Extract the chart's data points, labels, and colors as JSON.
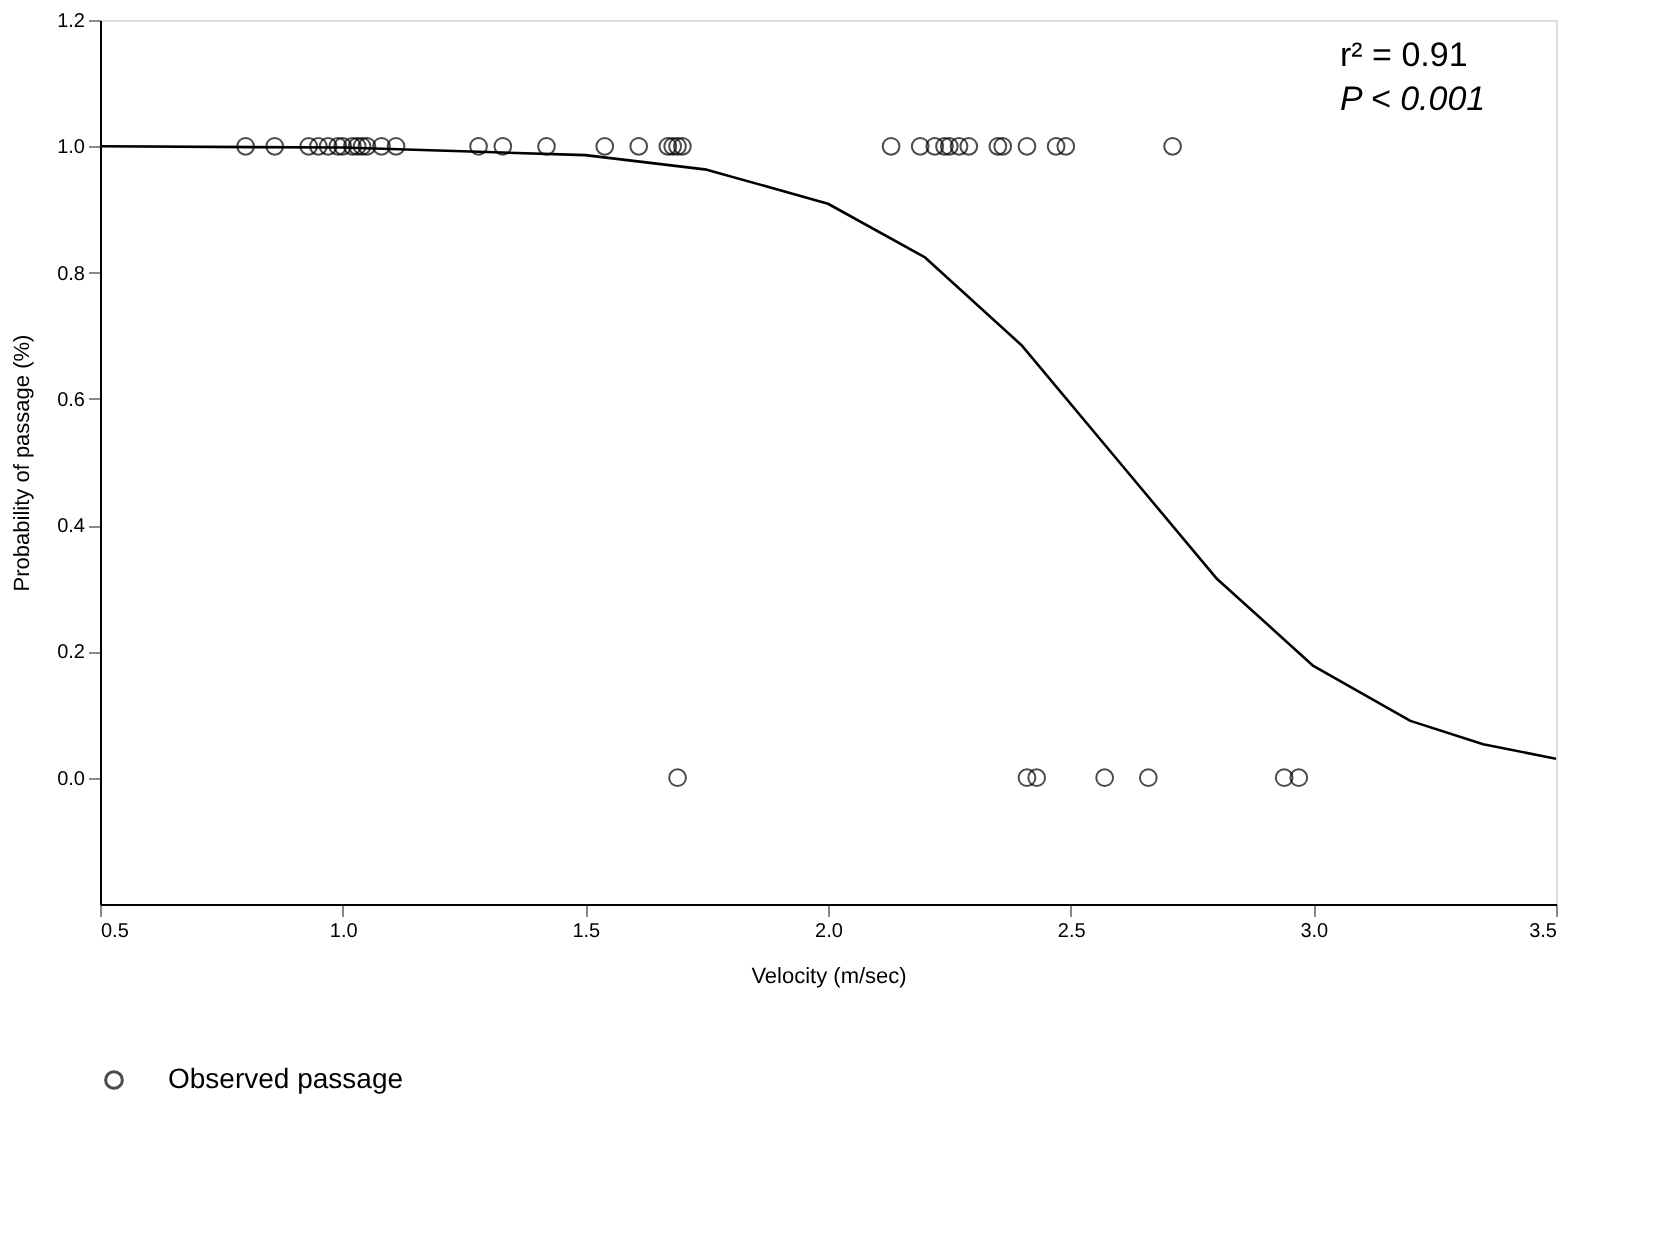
{
  "chart_data": {
    "type": "scatter",
    "xlabel": "Velocity (m/sec)",
    "ylabel": "Probability of passage (%)",
    "xlim": [
      0.5,
      3.5
    ],
    "xticks": [
      {
        "value": 0.5,
        "label": "0.5"
      },
      {
        "value": 1,
        "label": "1.0"
      },
      {
        "value": 1.5,
        "label": "1.5"
      },
      {
        "value": 2,
        "label": "2.0"
      },
      {
        "value": 2.5,
        "label": "2.5"
      },
      {
        "value": 3,
        "label": "3.0"
      },
      {
        "value": 3.5,
        "label": "3.5"
      }
    ],
    "ylim": [
      -0.2,
      1.2
    ],
    "yticks": [
      {
        "value": 0,
        "label": "0.0"
      },
      {
        "value": 0.2,
        "label": "0.2"
      },
      {
        "value": 0.4,
        "label": "0.4"
      },
      {
        "value": 0.6,
        "label": "0.6"
      },
      {
        "value": 0.8,
        "label": "0.8"
      },
      {
        "value": 1,
        "label": "1.0"
      },
      {
        "value": 1.2,
        "label": "1.2"
      }
    ],
    "grid": false,
    "legend": "bottom left",
    "series": [
      {
        "name": "Observed passage",
        "marker": "circle",
        "color": "#000000",
        "x": [
          0.8,
          0.86,
          0.93,
          0.95,
          0.97,
          0.99,
          1.0,
          1.02,
          1.03,
          1.04,
          1.05,
          1.08,
          1.11,
          1.28,
          1.33,
          1.42,
          1.54,
          1.61,
          1.67,
          1.68,
          1.69,
          1.7,
          2.13,
          2.19,
          2.22,
          2.24,
          2.25,
          2.27,
          2.29,
          2.35,
          2.36,
          2.41,
          2.47,
          2.49,
          2.71,
          1.69,
          2.41,
          2.43,
          2.57,
          2.66,
          2.94,
          2.97
        ],
        "values": [
          1,
          1,
          1,
          1,
          1,
          1,
          1,
          1,
          1,
          1,
          1,
          1,
          1,
          1,
          1,
          1,
          1,
          1,
          1,
          1,
          1,
          1,
          1,
          1,
          1,
          1,
          1,
          1,
          1,
          1,
          1,
          1,
          1,
          1,
          1,
          0,
          0,
          0,
          0,
          0,
          0,
          0
        ]
      },
      {
        "type": "line",
        "marker": "none",
        "line_style": "solid",
        "color": "#000000",
        "x": [
          0.5,
          1.0,
          1.5,
          1.75,
          2.0,
          2.2,
          2.4,
          2.6,
          2.8,
          3.0,
          3.2,
          3.35,
          3.5
        ],
        "values": [
          1.0,
          0.998,
          0.986,
          0.963,
          0.909,
          0.824,
          0.684,
          0.5,
          0.316,
          0.177,
          0.09,
          0.053,
          0.03
        ]
      }
    ],
    "annotations": [
      "r² = 0.91",
      "P < 0.001"
    ]
  }
}
